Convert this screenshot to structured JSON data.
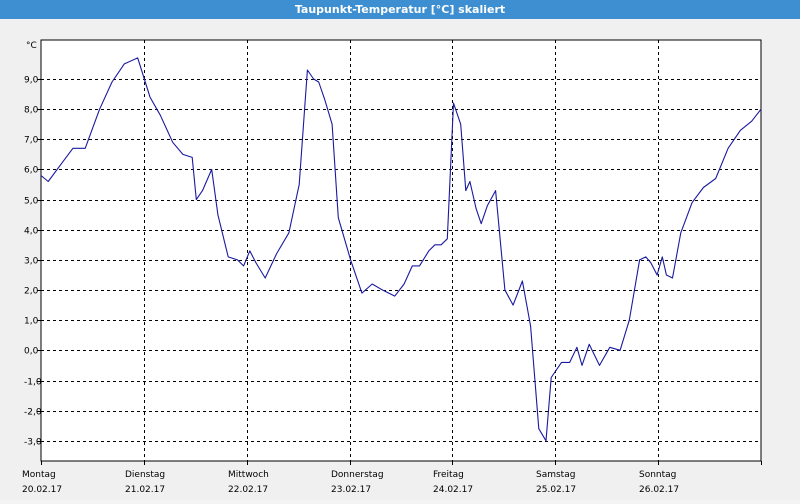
{
  "window": {
    "title": "Taupunkt-Temperatur [°C] skaliert"
  },
  "colors": {
    "titlebar": "#3d8fd1",
    "line": "#1a1aa0",
    "grid": "#000000",
    "background": "#ffffff"
  },
  "chart_data": {
    "type": "line",
    "title": "Taupunkt-Temperatur [°C] skaliert",
    "ylabel": "°C",
    "xlabel": "",
    "ylim": [
      -3.6,
      10.0
    ],
    "yticks": [
      -3.0,
      -2.0,
      -1.0,
      0.0,
      1.0,
      2.0,
      3.0,
      4.0,
      5.0,
      6.0,
      7.0,
      8.0,
      9.0
    ],
    "ytick_labels": [
      "-3,0",
      "-2,0",
      "-1,0",
      "0,0",
      "1,0",
      "2,0",
      "3,0",
      "4,0",
      "5,0",
      "6,0",
      "7,0",
      "8,0",
      "9,0"
    ],
    "x_days": [
      {
        "weekday": "Montag",
        "date": "20.02.17"
      },
      {
        "weekday": "Dienstag",
        "date": "21.02.17"
      },
      {
        "weekday": "Mittwoch",
        "date": "22.02.17"
      },
      {
        "weekday": "Donnerstag",
        "date": "23.02.17"
      },
      {
        "weekday": "Freitag",
        "date": "24.02.17"
      },
      {
        "weekday": "Samstag",
        "date": "25.02.17"
      },
      {
        "weekday": "Sonntag",
        "date": "26.02.17"
      }
    ],
    "xlim_days": [
      0,
      7
    ],
    "grid": true,
    "series": [
      {
        "x_days": [
          0.0,
          0.07,
          0.2,
          0.31,
          0.43,
          0.57,
          0.69,
          0.81,
          0.94,
          1.06,
          1.16,
          1.28,
          1.38,
          1.47,
          1.51,
          1.57,
          1.66,
          1.72,
          1.82,
          1.91,
          1.97,
          2.03,
          2.09,
          2.18,
          2.29,
          2.41,
          2.51,
          2.59,
          2.65,
          2.7,
          2.76,
          2.83,
          2.89,
          3.01,
          3.12,
          3.22,
          3.32,
          3.44,
          3.53,
          3.61,
          3.68,
          3.77,
          3.83,
          3.89,
          3.95,
          4.01,
          4.08,
          4.13,
          4.17,
          4.23,
          4.28,
          4.34,
          4.42,
          4.51,
          4.59,
          4.68,
          4.76,
          4.84,
          4.91,
          4.96,
          5.06,
          5.14,
          5.21,
          5.26,
          5.33,
          5.43,
          5.53,
          5.63,
          5.72,
          5.82,
          5.88,
          5.93,
          5.99,
          6.04,
          6.08,
          6.14,
          6.22,
          6.33,
          6.44,
          6.56,
          6.68,
          6.8,
          6.91,
          7.0
        ],
        "y": [
          5.8,
          5.6,
          6.2,
          6.7,
          6.7,
          8.0,
          8.9,
          9.5,
          9.7,
          8.4,
          7.8,
          6.9,
          6.5,
          6.4,
          5.0,
          5.3,
          6.0,
          4.5,
          3.1,
          3.0,
          2.8,
          3.3,
          2.9,
          2.4,
          3.2,
          3.9,
          5.5,
          9.3,
          9.0,
          8.9,
          8.3,
          7.5,
          4.4,
          3.0,
          1.9,
          2.2,
          2.0,
          1.8,
          2.2,
          2.8,
          2.8,
          3.3,
          3.5,
          3.5,
          3.7,
          8.2,
          7.5,
          5.3,
          5.6,
          4.7,
          4.2,
          4.8,
          5.3,
          2.0,
          1.5,
          2.3,
          0.8,
          -2.6,
          -3.0,
          -0.9,
          -0.4,
          -0.4,
          0.1,
          -0.5,
          0.2,
          -0.5,
          0.1,
          0.0,
          1.0,
          3.0,
          3.1,
          2.9,
          2.5,
          3.1,
          2.5,
          2.4,
          3.9,
          4.9,
          5.4,
          5.7,
          6.7,
          7.3,
          7.6,
          8.0
        ]
      }
    ]
  }
}
